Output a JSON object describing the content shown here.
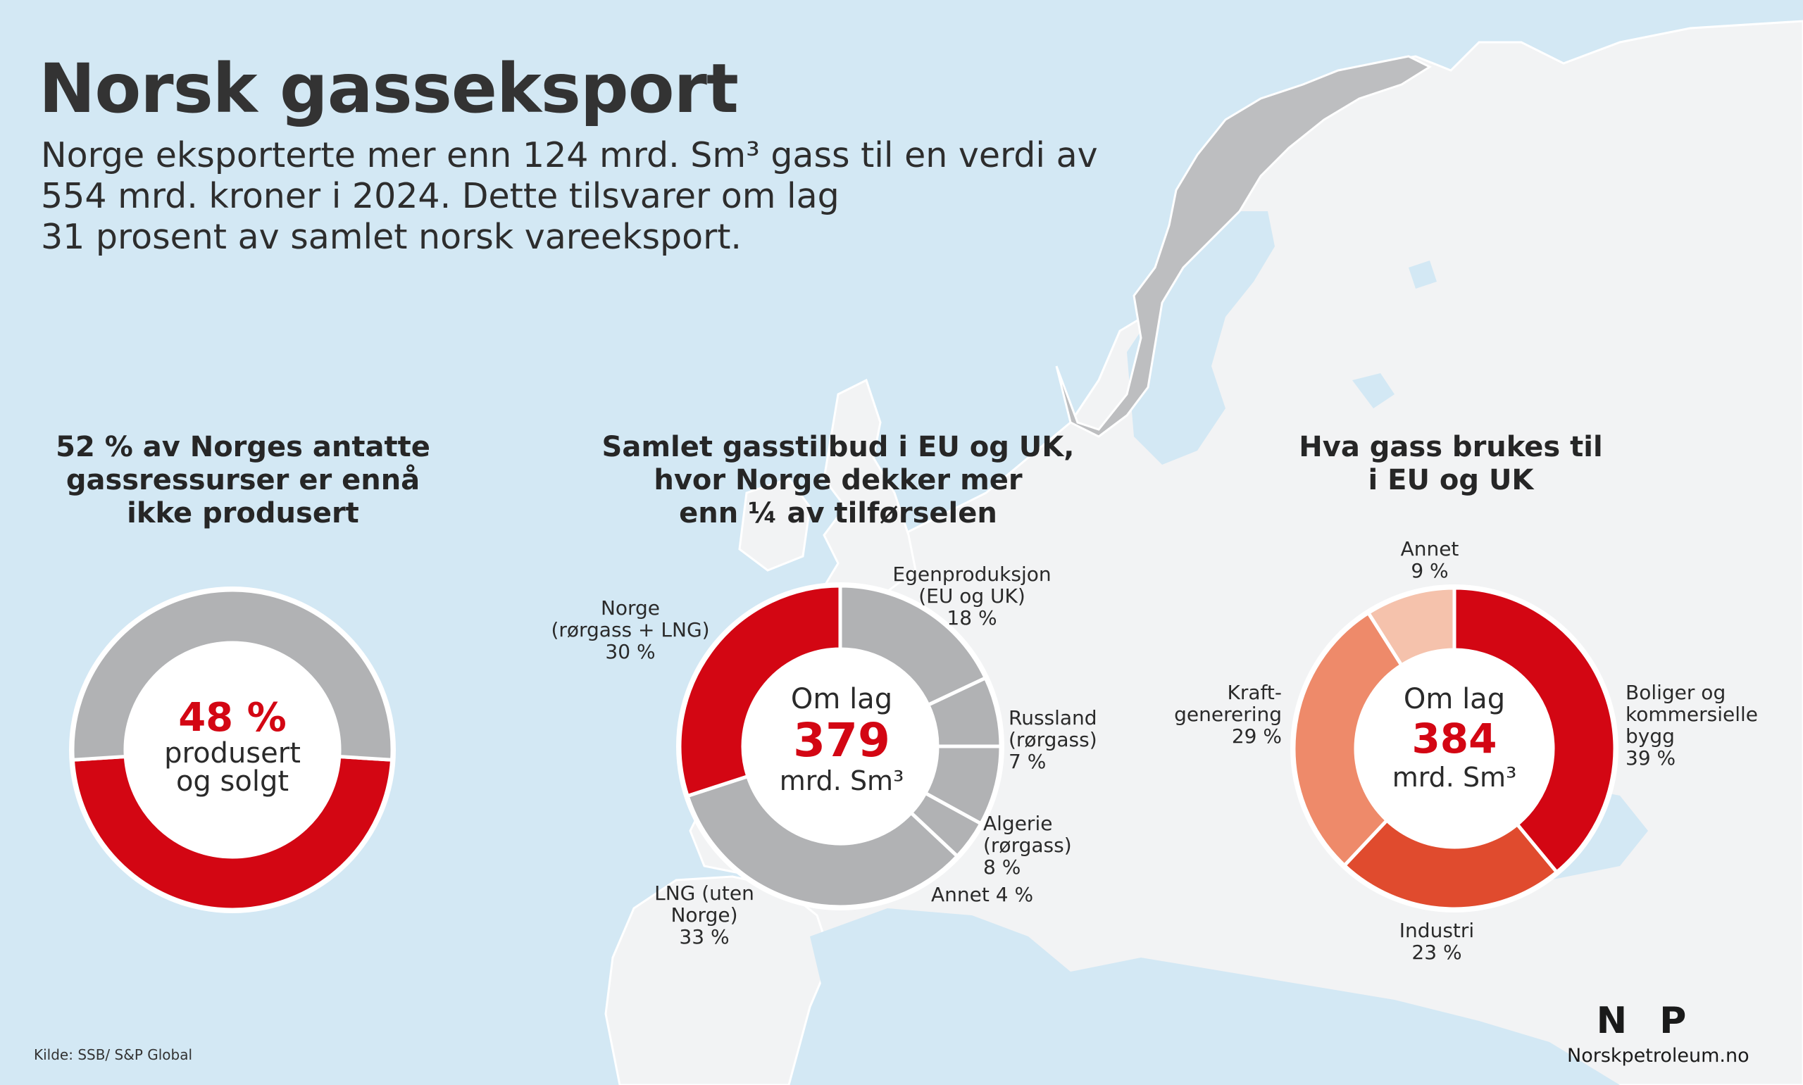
{
  "title": "Norsk gasseksport",
  "intro": [
    "Norge eksporterte mer enn 124 mrd. Sm³ gass til en verdi av",
    "554 mrd. kroner i 2024. Dette tilsvarer om lag",
    "31 prosent av samlet norsk vareeksport."
  ],
  "colors": {
    "sea": "#d3e8f4",
    "land": "#f2f3f4",
    "norway": "#bdbec0",
    "red": "#d30613",
    "grey": "#b1b2b4"
  },
  "chart_data": [
    {
      "type": "pie",
      "title": [
        "52 % av Norges antatte",
        "gassressurser er ennå",
        "ikke produsert"
      ],
      "center": [
        "48 %",
        "produsert",
        "og solgt"
      ],
      "slices": [
        {
          "label": "Produsert og solgt",
          "value": 48,
          "color": "#d30613"
        },
        {
          "label": "Ikke produsert",
          "value": 52,
          "color": "#b1b2b4"
        }
      ]
    },
    {
      "type": "pie",
      "title": [
        "Samlet gasstilbud i EU og UK,",
        "hvor Norge dekker mer",
        "enn ¼ av tilførselen"
      ],
      "center": [
        "Om lag",
        "379",
        "mrd. Sm³"
      ],
      "slices": [
        {
          "label": [
            "Egenproduksjon",
            "(EU og UK)",
            "18 %"
          ],
          "value": 18,
          "color": "#b1b2b4"
        },
        {
          "label": [
            "Russland",
            "(rørgass)",
            "7 %"
          ],
          "value": 7,
          "color": "#b1b2b4"
        },
        {
          "label": [
            "Algerie",
            "(rørgass)",
            "8 %"
          ],
          "value": 8,
          "color": "#b1b2b4"
        },
        {
          "label": [
            "Annet 4 %"
          ],
          "value": 4,
          "color": "#b1b2b4"
        },
        {
          "label": [
            "LNG  (uten",
            "Norge)",
            "33 %"
          ],
          "value": 33,
          "color": "#b1b2b4"
        },
        {
          "label": [
            "Norge",
            "(rørgass + LNG)",
            "30 %"
          ],
          "value": 30,
          "color": "#d30613"
        }
      ]
    },
    {
      "type": "pie",
      "title": [
        "Hva gass brukes til",
        "i EU og UK"
      ],
      "center": [
        "Om lag",
        "384",
        "mrd. Sm³"
      ],
      "slices": [
        {
          "label": [
            "Boliger og",
            "kommersielle",
            "bygg",
            "39 %"
          ],
          "value": 39,
          "color": "#d30613"
        },
        {
          "label": [
            "Industri",
            "23 %"
          ],
          "value": 23,
          "color": "#e04b2e"
        },
        {
          "label": [
            "Kraft-",
            "generering",
            "29 %"
          ],
          "value": 29,
          "color": "#ee8a6a"
        },
        {
          "label": [
            "Annet",
            "9 %"
          ],
          "value": 9,
          "color": "#f5c2ac"
        }
      ]
    }
  ],
  "source": "Kilde: SSB/ S&P Global",
  "logo": {
    "mark": "N P",
    "url": "Norskpetroleum.no"
  }
}
